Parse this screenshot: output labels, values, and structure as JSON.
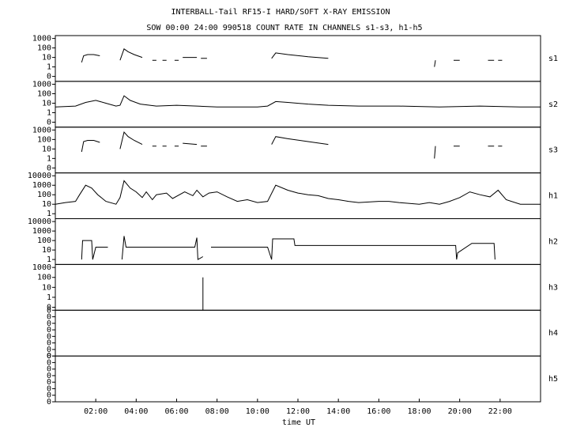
{
  "chart_data": {
    "type": "line",
    "title": "INTERBALL-Tail RF15-I HARD/SOFT X-RAY EMISSION",
    "subtitle": "SOW 00:00 24:00 990518  COUNT RATE IN CHANNELS s1-s3, h1-h5",
    "xlabel": "time UT",
    "xlim": [
      0,
      24
    ],
    "xticks": [
      {
        "value": 2,
        "label": "02:00"
      },
      {
        "value": 4,
        "label": "04:00"
      },
      {
        "value": 6,
        "label": "06:00"
      },
      {
        "value": 8,
        "label": "08:00"
      },
      {
        "value": 10,
        "label": "10:00"
      },
      {
        "value": 12,
        "label": "12:00"
      },
      {
        "value": 14,
        "label": "14:00"
      },
      {
        "value": 16,
        "label": "16:00"
      },
      {
        "value": 18,
        "label": "18:00"
      },
      {
        "value": 20,
        "label": "20:00"
      },
      {
        "value": 22,
        "label": "22:00"
      }
    ],
    "color": "#000000",
    "series": [
      {
        "name": "s1",
        "log": true,
        "ylim": [
          0.03,
          2000
        ],
        "yticks": [
          {
            "value": 0.1,
            "label": "0"
          },
          1,
          10,
          100,
          1000
        ],
        "x": [
          1.3,
          1.4,
          1.6,
          1.9,
          2.2,
          2.25,
          3.2,
          3.4,
          3.6,
          3.9,
          4.3,
          4.35,
          4.8,
          5.0,
          5.05,
          5.3,
          5.5,
          5.55,
          5.9,
          6.1,
          6.15,
          6.3,
          7.0,
          7.05,
          7.2,
          7.5,
          7.55,
          10.7,
          10.9,
          11.5,
          12.5,
          13.5,
          13.55,
          18.75,
          18.8,
          18.85,
          19.7,
          20.0,
          20.05,
          21.4,
          21.7,
          21.75,
          21.9,
          22.1
        ],
        "values": [
          3,
          15,
          20,
          20,
          15,
          null,
          5,
          80,
          40,
          20,
          10,
          null,
          5,
          5,
          null,
          5,
          5,
          null,
          5,
          5,
          null,
          10,
          10,
          null,
          8,
          8,
          null,
          8,
          30,
          20,
          12,
          8,
          null,
          1,
          5,
          null,
          5,
          5,
          null,
          5,
          5,
          null,
          5,
          5
        ]
      },
      {
        "name": "s2",
        "log": true,
        "ylim": [
          0.03,
          2000
        ],
        "yticks": [
          {
            "value": 0.1,
            "label": "0"
          },
          1,
          10,
          100,
          1000
        ],
        "x": [
          0,
          1,
          1.5,
          2,
          2.5,
          3,
          3.2,
          3.4,
          3.7,
          4.2,
          5,
          6,
          7,
          8,
          9,
          10,
          10.5,
          10.9,
          11.5,
          12.5,
          13.5,
          15,
          17,
          19,
          21,
          23,
          24
        ],
        "values": [
          4,
          5,
          12,
          20,
          10,
          5,
          6,
          60,
          20,
          8,
          5,
          6,
          5,
          4,
          4,
          4,
          5,
          15,
          12,
          8,
          6,
          5,
          5,
          4,
          5,
          4,
          4
        ]
      },
      {
        "name": "s3",
        "log": true,
        "ylim": [
          0.03,
          2000
        ],
        "yticks": [
          {
            "value": 0.1,
            "label": "0"
          },
          1,
          10,
          100,
          1000
        ],
        "x": [
          1.3,
          1.4,
          1.6,
          1.9,
          2.2,
          2.25,
          3.2,
          3.4,
          3.6,
          3.9,
          4.3,
          4.35,
          4.8,
          5.0,
          5.05,
          5.3,
          5.5,
          5.55,
          5.9,
          6.1,
          6.15,
          6.3,
          7.0,
          7.05,
          7.2,
          7.5,
          7.55,
          10.7,
          10.9,
          11.5,
          12.5,
          13.5,
          13.55,
          18.75,
          18.8,
          18.85,
          19.7,
          20.0,
          20.05,
          21.4,
          21.7,
          21.75,
          21.9,
          22.1
        ],
        "values": [
          5,
          60,
          80,
          80,
          50,
          null,
          10,
          600,
          200,
          80,
          30,
          null,
          20,
          20,
          null,
          20,
          20,
          null,
          20,
          20,
          null,
          40,
          30,
          null,
          20,
          20,
          null,
          30,
          200,
          120,
          60,
          30,
          null,
          1,
          20,
          null,
          20,
          20,
          null,
          20,
          20,
          null,
          20,
          20
        ]
      },
      {
        "name": "h1",
        "log": true,
        "ylim": [
          0.3,
          20000
        ],
        "yticks": [
          1,
          10,
          100,
          1000,
          10000
        ],
        "x": [
          0,
          0.5,
          1,
          1.2,
          1.5,
          1.8,
          2.1,
          2.5,
          3.0,
          3.2,
          3.4,
          3.7,
          4.0,
          4.3,
          4.5,
          4.8,
          5.0,
          5.5,
          5.8,
          6.4,
          6.8,
          7.0,
          7.3,
          7.6,
          8.0,
          8.5,
          9.0,
          9.5,
          10.0,
          10.5,
          10.9,
          11.5,
          12.0,
          12.5,
          13.0,
          13.5,
          14.0,
          14.5,
          15.0,
          16.0,
          16.5,
          17.0,
          18.0,
          18.5,
          19.0,
          19.5,
          20.0,
          20.5,
          21.0,
          21.5,
          21.9,
          22.3,
          23.0,
          24.0
        ],
        "values": [
          10,
          15,
          20,
          100,
          1000,
          500,
          100,
          20,
          10,
          50,
          3000,
          500,
          200,
          50,
          200,
          30,
          100,
          150,
          40,
          200,
          80,
          300,
          60,
          150,
          200,
          60,
          20,
          30,
          15,
          20,
          1000,
          300,
          150,
          100,
          80,
          40,
          30,
          20,
          15,
          20,
          20,
          15,
          10,
          15,
          10,
          20,
          50,
          200,
          100,
          60,
          300,
          30,
          10,
          10
        ]
      },
      {
        "name": "h2",
        "log": true,
        "ylim": [
          0.3,
          20000
        ],
        "yticks": [
          1,
          10,
          100,
          1000,
          10000
        ],
        "x": [
          1.3,
          1.35,
          1.8,
          1.85,
          2.0,
          2.6,
          2.65,
          3.3,
          3.4,
          3.5,
          6.9,
          7.0,
          7.05,
          7.3,
          7.35,
          7.7,
          10.5,
          10.7,
          10.75,
          11.8,
          11.85,
          19.8,
          19.85,
          19.9,
          20.6,
          21.7,
          21.75
        ],
        "values": [
          1,
          100,
          100,
          1,
          20,
          20,
          null,
          1,
          300,
          20,
          20,
          200,
          1,
          2,
          null,
          20,
          20,
          1,
          150,
          150,
          30,
          30,
          1,
          5,
          50,
          50,
          1
        ]
      },
      {
        "name": "h3",
        "log": true,
        "ylim": [
          0.05,
          2000
        ],
        "yticks": [
          {
            "value": 0.1,
            "label": "0"
          },
          1,
          10,
          100,
          1000
        ],
        "x": [
          7.3,
          7.3
        ],
        "values": [
          0.05,
          100
        ]
      },
      {
        "name": "h4",
        "log": false,
        "ylim": [
          0,
          0.0007
        ],
        "yticks": [
          0,
          {
            "value": 0.0001,
            "label": "0"
          },
          {
            "value": 0.0002,
            "label": "0"
          },
          {
            "value": 0.0003,
            "label": "0"
          },
          {
            "value": 0.0004,
            "label": "0"
          },
          {
            "value": 0.0005,
            "label": "0"
          },
          {
            "value": 0.0006,
            "label": "0"
          },
          {
            "value": 0.0007,
            "label": "0"
          }
        ]
      },
      {
        "name": "h5",
        "log": false,
        "ylim": [
          0,
          0.0007
        ],
        "yticks": [
          0,
          {
            "value": 0.0001,
            "label": "0"
          },
          {
            "value": 0.0002,
            "label": "0"
          },
          {
            "value": 0.0003,
            "label": "0"
          },
          {
            "value": 0.0004,
            "label": "0"
          },
          {
            "value": 0.0005,
            "label": "0"
          },
          {
            "value": 0.0006,
            "label": "0"
          },
          {
            "value": 0.0007,
            "label": "0"
          }
        ]
      }
    ]
  }
}
